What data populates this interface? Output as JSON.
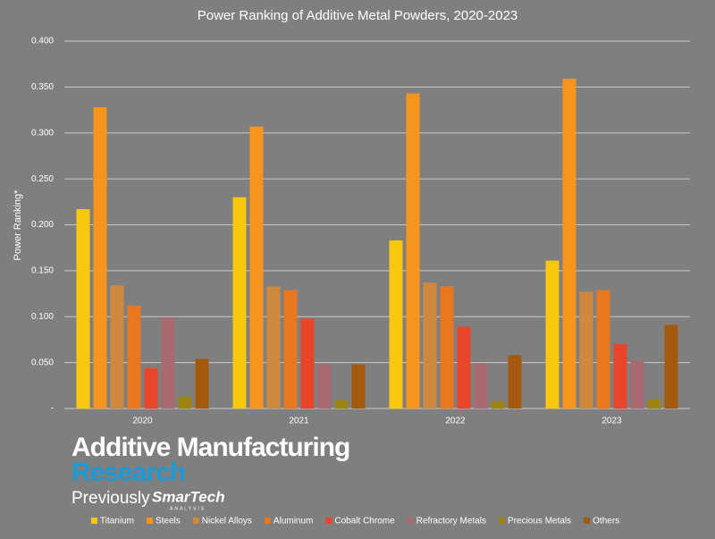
{
  "chart_data": {
    "type": "bar",
    "title": "Power Ranking of Additive Metal Powders, 2020-2023",
    "y_label": "Power Ranking*",
    "categories": [
      "2020",
      "2021",
      "2022",
      "2023"
    ],
    "series": [
      {
        "name": "Titanium",
        "color": "#f9c80e",
        "values": [
          0.217,
          0.23,
          0.183,
          0.161
        ]
      },
      {
        "name": "Steels",
        "color": "#f7941d",
        "values": [
          0.328,
          0.307,
          0.343,
          0.359
        ]
      },
      {
        "name": "Nickel Alloys",
        "color": "#d0883f",
        "values": [
          0.134,
          0.133,
          0.137,
          0.127
        ]
      },
      {
        "name": "Aluminum",
        "color": "#e8771e",
        "values": [
          0.112,
          0.129,
          0.133,
          0.129
        ]
      },
      {
        "name": "Cobalt Chrome",
        "color": "#e8452a",
        "values": [
          0.044,
          0.098,
          0.089,
          0.07
        ]
      },
      {
        "name": "Refractory Metals",
        "color": "#a86a70",
        "values": [
          0.099,
          0.048,
          0.049,
          0.052
        ]
      },
      {
        "name": "Precious Metals",
        "color": "#9e8413",
        "values": [
          0.013,
          0.009,
          0.008,
          0.01
        ]
      },
      {
        "name": "Others",
        "color": "#a35a0c",
        "values": [
          0.054,
          0.048,
          0.058,
          0.091
        ]
      }
    ],
    "ylim": [
      0,
      0.4
    ],
    "yticks": [
      {
        "value": 0,
        "label": "-"
      },
      {
        "value": 0.05,
        "label": "0.050"
      },
      {
        "value": 0.1,
        "label": "0.100"
      },
      {
        "value": 0.15,
        "label": "0.150"
      },
      {
        "value": 0.2,
        "label": "0.200"
      },
      {
        "value": 0.25,
        "label": "0.250"
      },
      {
        "value": 0.3,
        "label": "0.300"
      },
      {
        "value": 0.35,
        "label": "0.350"
      },
      {
        "value": 0.4,
        "label": "0.400"
      }
    ],
    "grid": true
  },
  "logo": {
    "line1": "Additive Manufacturing",
    "line2": "Research",
    "previously": "Previously",
    "brand": "SmarTech",
    "brand_sub": "ANALYSIS"
  }
}
